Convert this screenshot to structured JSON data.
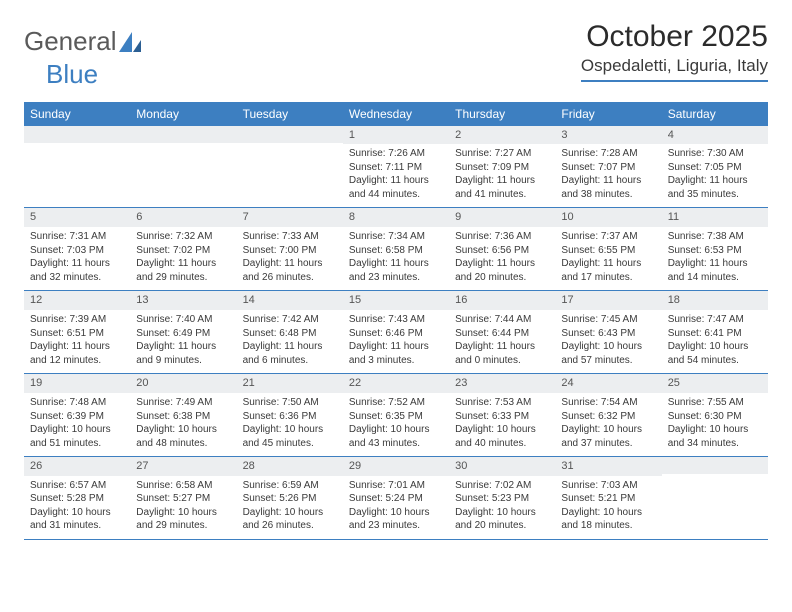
{
  "logo": {
    "textGray": "General",
    "textBlue": "Blue"
  },
  "header": {
    "monthTitle": "October 2025",
    "location": "Ospedaletti, Liguria, Italy"
  },
  "colors": {
    "accent": "#3d7fc1",
    "dayBarBg": "#eceef0",
    "text": "#3a3a3a",
    "white": "#ffffff"
  },
  "weekdays": [
    "Sunday",
    "Monday",
    "Tuesday",
    "Wednesday",
    "Thursday",
    "Friday",
    "Saturday"
  ],
  "weeks": [
    [
      {
        "empty": true
      },
      {
        "empty": true
      },
      {
        "empty": true
      },
      {
        "num": "1",
        "sunrise": "Sunrise: 7:26 AM",
        "sunset": "Sunset: 7:11 PM",
        "daylight": "Daylight: 11 hours and 44 minutes."
      },
      {
        "num": "2",
        "sunrise": "Sunrise: 7:27 AM",
        "sunset": "Sunset: 7:09 PM",
        "daylight": "Daylight: 11 hours and 41 minutes."
      },
      {
        "num": "3",
        "sunrise": "Sunrise: 7:28 AM",
        "sunset": "Sunset: 7:07 PM",
        "daylight": "Daylight: 11 hours and 38 minutes."
      },
      {
        "num": "4",
        "sunrise": "Sunrise: 7:30 AM",
        "sunset": "Sunset: 7:05 PM",
        "daylight": "Daylight: 11 hours and 35 minutes."
      }
    ],
    [
      {
        "num": "5",
        "sunrise": "Sunrise: 7:31 AM",
        "sunset": "Sunset: 7:03 PM",
        "daylight": "Daylight: 11 hours and 32 minutes."
      },
      {
        "num": "6",
        "sunrise": "Sunrise: 7:32 AM",
        "sunset": "Sunset: 7:02 PM",
        "daylight": "Daylight: 11 hours and 29 minutes."
      },
      {
        "num": "7",
        "sunrise": "Sunrise: 7:33 AM",
        "sunset": "Sunset: 7:00 PM",
        "daylight": "Daylight: 11 hours and 26 minutes."
      },
      {
        "num": "8",
        "sunrise": "Sunrise: 7:34 AM",
        "sunset": "Sunset: 6:58 PM",
        "daylight": "Daylight: 11 hours and 23 minutes."
      },
      {
        "num": "9",
        "sunrise": "Sunrise: 7:36 AM",
        "sunset": "Sunset: 6:56 PM",
        "daylight": "Daylight: 11 hours and 20 minutes."
      },
      {
        "num": "10",
        "sunrise": "Sunrise: 7:37 AM",
        "sunset": "Sunset: 6:55 PM",
        "daylight": "Daylight: 11 hours and 17 minutes."
      },
      {
        "num": "11",
        "sunrise": "Sunrise: 7:38 AM",
        "sunset": "Sunset: 6:53 PM",
        "daylight": "Daylight: 11 hours and 14 minutes."
      }
    ],
    [
      {
        "num": "12",
        "sunrise": "Sunrise: 7:39 AM",
        "sunset": "Sunset: 6:51 PM",
        "daylight": "Daylight: 11 hours and 12 minutes."
      },
      {
        "num": "13",
        "sunrise": "Sunrise: 7:40 AM",
        "sunset": "Sunset: 6:49 PM",
        "daylight": "Daylight: 11 hours and 9 minutes."
      },
      {
        "num": "14",
        "sunrise": "Sunrise: 7:42 AM",
        "sunset": "Sunset: 6:48 PM",
        "daylight": "Daylight: 11 hours and 6 minutes."
      },
      {
        "num": "15",
        "sunrise": "Sunrise: 7:43 AM",
        "sunset": "Sunset: 6:46 PM",
        "daylight": "Daylight: 11 hours and 3 minutes."
      },
      {
        "num": "16",
        "sunrise": "Sunrise: 7:44 AM",
        "sunset": "Sunset: 6:44 PM",
        "daylight": "Daylight: 11 hours and 0 minutes."
      },
      {
        "num": "17",
        "sunrise": "Sunrise: 7:45 AM",
        "sunset": "Sunset: 6:43 PM",
        "daylight": "Daylight: 10 hours and 57 minutes."
      },
      {
        "num": "18",
        "sunrise": "Sunrise: 7:47 AM",
        "sunset": "Sunset: 6:41 PM",
        "daylight": "Daylight: 10 hours and 54 minutes."
      }
    ],
    [
      {
        "num": "19",
        "sunrise": "Sunrise: 7:48 AM",
        "sunset": "Sunset: 6:39 PM",
        "daylight": "Daylight: 10 hours and 51 minutes."
      },
      {
        "num": "20",
        "sunrise": "Sunrise: 7:49 AM",
        "sunset": "Sunset: 6:38 PM",
        "daylight": "Daylight: 10 hours and 48 minutes."
      },
      {
        "num": "21",
        "sunrise": "Sunrise: 7:50 AM",
        "sunset": "Sunset: 6:36 PM",
        "daylight": "Daylight: 10 hours and 45 minutes."
      },
      {
        "num": "22",
        "sunrise": "Sunrise: 7:52 AM",
        "sunset": "Sunset: 6:35 PM",
        "daylight": "Daylight: 10 hours and 43 minutes."
      },
      {
        "num": "23",
        "sunrise": "Sunrise: 7:53 AM",
        "sunset": "Sunset: 6:33 PM",
        "daylight": "Daylight: 10 hours and 40 minutes."
      },
      {
        "num": "24",
        "sunrise": "Sunrise: 7:54 AM",
        "sunset": "Sunset: 6:32 PM",
        "daylight": "Daylight: 10 hours and 37 minutes."
      },
      {
        "num": "25",
        "sunrise": "Sunrise: 7:55 AM",
        "sunset": "Sunset: 6:30 PM",
        "daylight": "Daylight: 10 hours and 34 minutes."
      }
    ],
    [
      {
        "num": "26",
        "sunrise": "Sunrise: 6:57 AM",
        "sunset": "Sunset: 5:28 PM",
        "daylight": "Daylight: 10 hours and 31 minutes."
      },
      {
        "num": "27",
        "sunrise": "Sunrise: 6:58 AM",
        "sunset": "Sunset: 5:27 PM",
        "daylight": "Daylight: 10 hours and 29 minutes."
      },
      {
        "num": "28",
        "sunrise": "Sunrise: 6:59 AM",
        "sunset": "Sunset: 5:26 PM",
        "daylight": "Daylight: 10 hours and 26 minutes."
      },
      {
        "num": "29",
        "sunrise": "Sunrise: 7:01 AM",
        "sunset": "Sunset: 5:24 PM",
        "daylight": "Daylight: 10 hours and 23 minutes."
      },
      {
        "num": "30",
        "sunrise": "Sunrise: 7:02 AM",
        "sunset": "Sunset: 5:23 PM",
        "daylight": "Daylight: 10 hours and 20 minutes."
      },
      {
        "num": "31",
        "sunrise": "Sunrise: 7:03 AM",
        "sunset": "Sunset: 5:21 PM",
        "daylight": "Daylight: 10 hours and 18 minutes."
      },
      {
        "empty": true
      }
    ]
  ]
}
